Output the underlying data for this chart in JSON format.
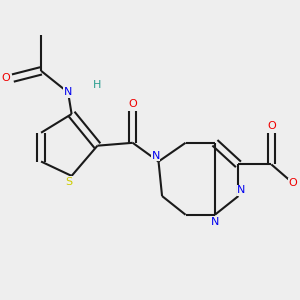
{
  "background_color": "#eeeeee",
  "bond_color": "#1a1a1a",
  "atom_colors": {
    "N": "#0000ee",
    "O": "#ee0000",
    "S": "#cccc00",
    "H": "#2a9d8f",
    "C": "#1a1a1a"
  },
  "figsize": [
    3.0,
    3.0
  ],
  "dpi": 100
}
